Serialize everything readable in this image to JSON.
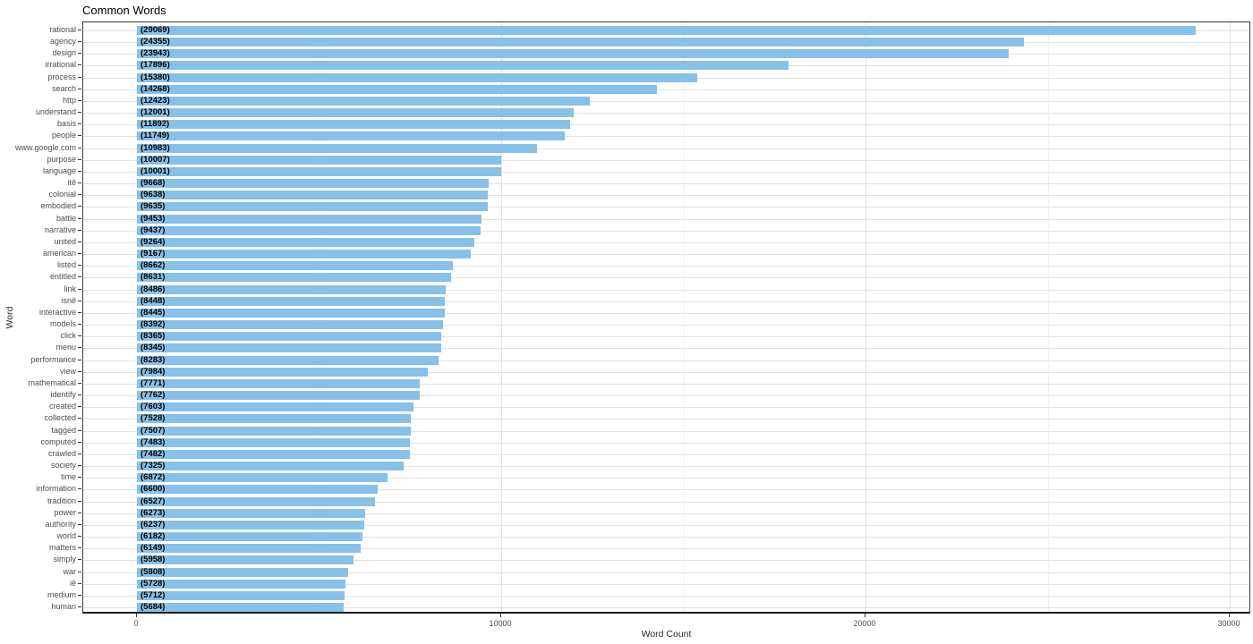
{
  "chart_data": {
    "type": "bar",
    "orientation": "horizontal",
    "title": "Common Words",
    "xlabel": "Word Count",
    "ylabel": "Word",
    "legend": "none",
    "grid": true,
    "xlim": [
      0,
      30590
    ],
    "x_ticks": [
      0,
      10000,
      20000,
      30000
    ],
    "x_tick_labels": [
      "0",
      "10000",
      "20000",
      "30000"
    ],
    "x_minor_gridlines": [
      5000,
      15000,
      25000
    ],
    "categories": [
      "rational",
      "agency",
      "design",
      "irrational",
      "process",
      "search",
      "http",
      "understand",
      "basis",
      "people",
      "www.google.com",
      "purpose",
      "language",
      "itê",
      "colonial",
      "embodied",
      "battle",
      "narrative",
      "united",
      "american",
      "listed",
      "entitled",
      "link",
      "isnê",
      "interactive",
      "models",
      "click",
      "menu",
      "performance",
      "view",
      "mathematical",
      "identify",
      "created",
      "collected",
      "tagged",
      "computed",
      "crawled",
      "society",
      "time",
      "information",
      "tradition",
      "power",
      "authority",
      "world",
      "matters",
      "simply",
      "war",
      "iê",
      "medium",
      "human"
    ],
    "values": [
      29069,
      24355,
      23943,
      17896,
      15380,
      14268,
      12423,
      12001,
      11892,
      11749,
      10983,
      10007,
      10001,
      9668,
      9638,
      9635,
      9453,
      9437,
      9264,
      9167,
      8662,
      8631,
      8486,
      8448,
      8445,
      8392,
      8365,
      8345,
      8283,
      7984,
      7771,
      7762,
      7603,
      7528,
      7507,
      7483,
      7482,
      7325,
      6872,
      6600,
      6527,
      6273,
      6237,
      6182,
      6149,
      5958,
      5808,
      5728,
      5712,
      5684
    ],
    "annotation_format": "({value})",
    "colors": {
      "bar": "#87C0E8",
      "annotation": "#000000",
      "tick_label": "#4d4d4d",
      "axis_title": "#2b2b2b",
      "major_gridline": "#e2e2e2",
      "minor_gridline": "#f0f0f0",
      "panel_border": "#3a3a3a",
      "background": "#ffffff"
    }
  }
}
